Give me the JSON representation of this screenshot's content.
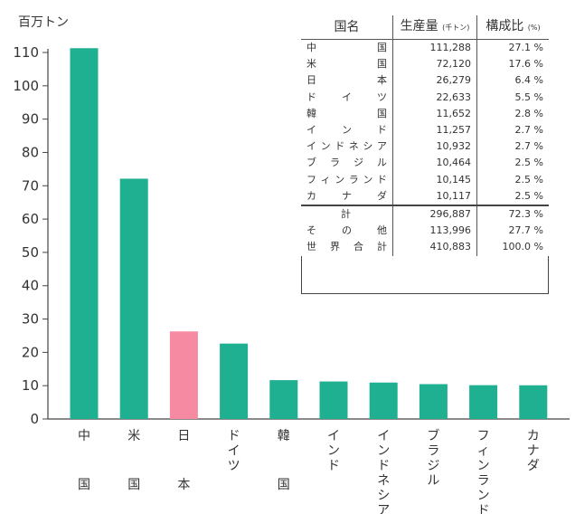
{
  "chart_data": {
    "type": "bar",
    "unit_label": "百万トン",
    "categories": [
      "中国",
      "米国",
      "日本",
      "ドイツ",
      "韓国",
      "インド",
      "インドネシア",
      "ブラジル",
      "フィンランド",
      "カナダ"
    ],
    "values": [
      111.288,
      72.12,
      26.279,
      22.633,
      11.652,
      11.257,
      10.932,
      10.464,
      10.145,
      10.117
    ],
    "highlight_category": "日本",
    "colors": {
      "bar": "#1faf91",
      "highlight": "#f58aa2",
      "axis": "#444444"
    },
    "ylim": [
      0,
      110
    ],
    "yticks": [
      0,
      10,
      20,
      30,
      40,
      50,
      60,
      70,
      80,
      90,
      100,
      110
    ],
    "xlabel": "",
    "ylabel": "",
    "title": ""
  },
  "table": {
    "headers": {
      "name": "国名",
      "production": "生産量",
      "production_unit": "(千トン)",
      "share": "構成比",
      "share_unit": "(%)"
    },
    "rows": [
      {
        "name": "中国",
        "production": "111,288",
        "share": "27.1 %"
      },
      {
        "name": "米国",
        "production": "72,120",
        "share": "17.6 %"
      },
      {
        "name": "日本",
        "production": "26,279",
        "share": "6.4 %"
      },
      {
        "name": "ドイツ",
        "production": "22,633",
        "share": "5.5 %"
      },
      {
        "name": "韓国",
        "production": "11,652",
        "share": "2.8 %"
      },
      {
        "name": "インド",
        "production": "11,257",
        "share": "2.7 %"
      },
      {
        "name": "インドネシア",
        "production": "10,932",
        "share": "2.7 %"
      },
      {
        "name": "ブラジル",
        "production": "10,464",
        "share": "2.5 %"
      },
      {
        "name": "フィンランド",
        "production": "10,145",
        "share": "2.5 %"
      },
      {
        "name": "カナダ",
        "production": "10,117",
        "share": "2.5 %"
      }
    ],
    "totals": [
      {
        "name": "計",
        "production": "296,887",
        "share": "72.3 %"
      },
      {
        "name": "その他",
        "production": "113,996",
        "share": "27.7 %"
      },
      {
        "name": "世界合計",
        "production": "410,883",
        "share": "100.0 %"
      }
    ]
  }
}
